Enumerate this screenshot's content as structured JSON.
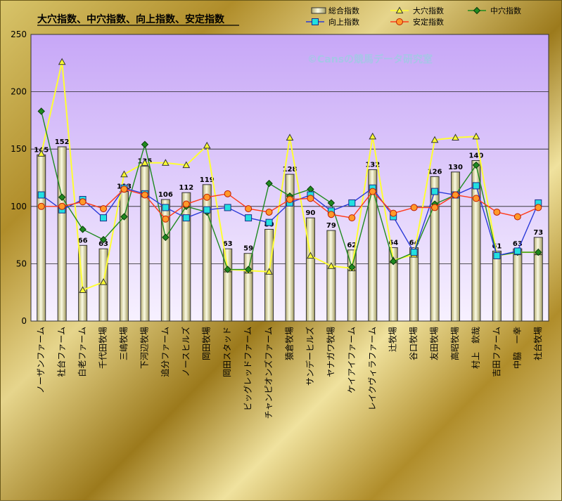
{
  "chart_data": {
    "type": "bar",
    "title": "大穴指数、中穴指数、向上指数、安定指数",
    "watermark": "©Cansの競馬データ研究室",
    "ylim": [
      0,
      250
    ],
    "yticks": [
      0,
      50,
      100,
      150,
      200,
      250
    ],
    "grid": true,
    "legend_position": "top-right",
    "categories": [
      "ノーザンファーム",
      "社台ファーム",
      "白老ファーム",
      "千代田牧場",
      "三嶋牧場",
      "下河辺牧場",
      "追分ファーム",
      "ノースヒルズ",
      "岡田牧場",
      "岡田スタッド",
      "ビッグレッドファーム",
      "チャンピオンズファーム",
      "猿倉牧場",
      "サンデーヒルズ",
      "ヤナガワ牧場",
      "ケイアイファーム",
      "レイクヴィラファーム",
      "辻牧場",
      "谷口牧場",
      "友田牧場",
      "高昭牧場",
      "村上　欽哉",
      "吉田ファーム",
      "中脇　一幸",
      "社台牧場"
    ],
    "series": [
      {
        "name": "総合指数",
        "kind": "bar",
        "color": "#f2f0cf",
        "values": [
          145,
          152,
          66,
          63,
          113,
          135,
          106,
          112,
          119,
          63,
          59,
          80,
          128,
          90,
          79,
          62,
          132,
          64,
          64,
          126,
          130,
          140,
          61,
          63,
          73
        ]
      },
      {
        "name": "大穴指数",
        "kind": "line",
        "color": "#ffff33",
        "marker": "triangle",
        "values": [
          146,
          226,
          27,
          34,
          128,
          138,
          138,
          136,
          153,
          45,
          44,
          43,
          160,
          57,
          48,
          46,
          161,
          53,
          58,
          158,
          160,
          161,
          57,
          60,
          60
        ]
      },
      {
        "name": "中穴指数",
        "kind": "line",
        "color": "#1f8a1f",
        "marker": "diamond",
        "values": [
          183,
          108,
          80,
          71,
          91,
          154,
          73,
          100,
          95,
          45,
          45,
          120,
          109,
          115,
          103,
          47,
          115,
          52,
          60,
          102,
          110,
          136,
          57,
          60,
          60
        ]
      },
      {
        "name": "向上指数",
        "kind": "line",
        "color": "#2a3ad8",
        "marker": "square",
        "values": [
          110,
          97,
          106,
          90,
          116,
          111,
          99,
          90,
          97,
          99,
          90,
          86,
          103,
          110,
          96,
          103,
          116,
          91,
          60,
          113,
          110,
          118,
          57,
          61,
          103
        ]
      },
      {
        "name": "安定指数",
        "kind": "line",
        "color": "#ff3b1a",
        "marker": "circle",
        "values": [
          100,
          100,
          104,
          98,
          115,
          110,
          89,
          102,
          108,
          111,
          98,
          95,
          106,
          107,
          93,
          90,
          113,
          94,
          99,
          99,
          110,
          107,
          95,
          91,
          99
        ]
      }
    ]
  }
}
